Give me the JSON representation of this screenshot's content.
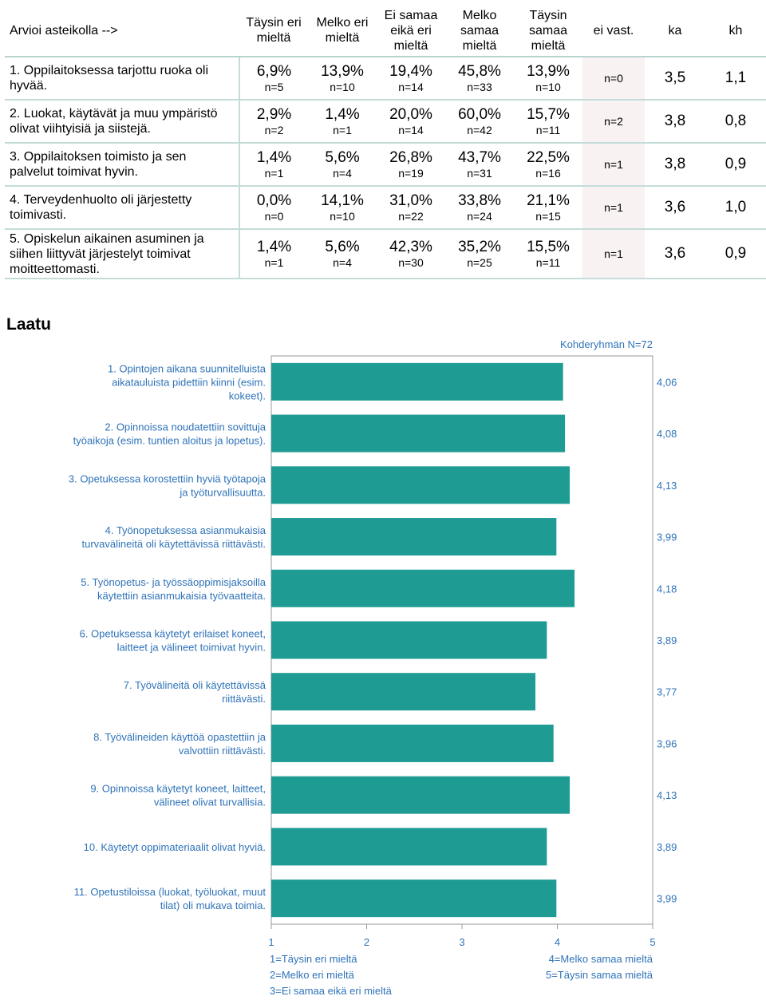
{
  "table": {
    "question_header": "Arvioi asteikolla -->",
    "scale_headers": [
      "Täysin eri mieltä",
      "Melko eri mieltä",
      "Ei samaa eikä eri mieltä",
      "Melko samaa mieltä",
      "Täysin samaa mieltä"
    ],
    "no_answer_header": "ei vast.",
    "mean_header": "ka",
    "sd_header": "kh",
    "rows": [
      {
        "question": "1. Oppilaitoksessa tarjottu ruoka oli hyvää.",
        "cells": [
          {
            "pct": "6,9%",
            "n": "n=5"
          },
          {
            "pct": "13,9%",
            "n": "n=10"
          },
          {
            "pct": "19,4%",
            "n": "n=14"
          },
          {
            "pct": "45,8%",
            "n": "n=33"
          },
          {
            "pct": "13,9%",
            "n": "n=10"
          }
        ],
        "no_answer": "n=0",
        "mean": "3,5",
        "sd": "1,1"
      },
      {
        "question": "2. Luokat, käytävät ja muu ympäristö olivat viihtyisiä ja siistejä.",
        "cells": [
          {
            "pct": "2,9%",
            "n": "n=2"
          },
          {
            "pct": "1,4%",
            "n": "n=1"
          },
          {
            "pct": "20,0%",
            "n": "n=14"
          },
          {
            "pct": "60,0%",
            "n": "n=42"
          },
          {
            "pct": "15,7%",
            "n": "n=11"
          }
        ],
        "no_answer": "n=2",
        "mean": "3,8",
        "sd": "0,8"
      },
      {
        "question": "3. Oppilaitoksen toimisto ja sen palvelut toimivat hyvin.",
        "cells": [
          {
            "pct": "1,4%",
            "n": "n=1"
          },
          {
            "pct": "5,6%",
            "n": "n=4"
          },
          {
            "pct": "26,8%",
            "n": "n=19"
          },
          {
            "pct": "43,7%",
            "n": "n=31"
          },
          {
            "pct": "22,5%",
            "n": "n=16"
          }
        ],
        "no_answer": "n=1",
        "mean": "3,8",
        "sd": "0,9"
      },
      {
        "question": "4. Terveydenhuolto oli järjestetty toimivasti.",
        "cells": [
          {
            "pct": "0,0%",
            "n": "n=0"
          },
          {
            "pct": "14,1%",
            "n": "n=10"
          },
          {
            "pct": "31,0%",
            "n": "n=22"
          },
          {
            "pct": "33,8%",
            "n": "n=24"
          },
          {
            "pct": "21,1%",
            "n": "n=15"
          }
        ],
        "no_answer": "n=1",
        "mean": "3,6",
        "sd": "1,0"
      },
      {
        "question": "5. Opiskelun aikainen asuminen ja siihen liittyvät järjestelyt toimivat moitteettomasti.",
        "cells": [
          {
            "pct": "1,4%",
            "n": "n=1"
          },
          {
            "pct": "5,6%",
            "n": "n=4"
          },
          {
            "pct": "42,3%",
            "n": "n=30"
          },
          {
            "pct": "35,2%",
            "n": "n=25"
          },
          {
            "pct": "15,5%",
            "n": "n=11"
          }
        ],
        "no_answer": "n=1",
        "mean": "3,6",
        "sd": "0,9"
      }
    ]
  },
  "section_title": "Laatu",
  "chart_data": {
    "type": "bar",
    "orientation": "horizontal",
    "note": "Kohderyhmän N=72",
    "categories": [
      "1. Opintojen aikana suunnitelluista aikatauluista pidettiin kiinni (esim. kokeet).",
      "2. Opinnoissa noudatettiin sovittuja työaikoja (esim. tuntien aloitus ja lopetus).",
      "3. Opetuksessa korostettiin hyviä työtapoja ja työturvallisuutta.",
      "4. Työnopetuksessa asianmukaisia turvavälineitä oli käytettävissä riittävästi.",
      "5. Työnopetus- ja työssäoppimisjaksoilla käytettiin asianmukaisia työvaatteita.",
      "6. Opetuksessa käytetyt erilaiset koneet, laitteet ja välineet toimivat hyvin.",
      "7. Työvälineitä oli käytettävissä riittävästi.",
      "8. Työvälineiden käyttöä opastettiin ja valvottiin riittävästi.",
      "9. Opinnoissa käytetyt koneet, laitteet, välineet olivat turvallisia.",
      "10. Käytetyt oppimateriaalit olivat hyviä.",
      "11. Opetustiloissa (luokat, työluokat, muut tilat) oli mukava toimia."
    ],
    "category_lines": [
      [
        "1. Opintojen aikana suunnitelluista",
        "aikatauluista pidettiin kiinni (esim.",
        "kokeet)."
      ],
      [
        "2. Opinnoissa noudatettiin sovittuja",
        "työaikoja (esim. tuntien aloitus ja lopetus)."
      ],
      [
        "3. Opetuksessa korostettiin hyviä työtapoja",
        "ja työturvallisuutta."
      ],
      [
        "4. Työnopetuksessa asianmukaisia",
        "turvavälineitä oli käytettävissä riittävästi."
      ],
      [
        "5. Työnopetus- ja työssäoppimisjaksoilla",
        "käytettiin asianmukaisia työvaatteita."
      ],
      [
        "6. Opetuksessa käytetyt erilaiset koneet,",
        "laitteet ja välineet toimivat hyvin."
      ],
      [
        "7. Työvälineitä oli käytettävissä",
        "riittävästi."
      ],
      [
        "8. Työvälineiden käyttöä opastettiin ja",
        "valvottiin riittävästi."
      ],
      [
        "9. Opinnoissa käytetyt koneet, laitteet,",
        "välineet olivat turvallisia."
      ],
      [
        "10. Käytetyt oppimateriaalit olivat hyviä."
      ],
      [
        "11. Opetustiloissa (luokat, työluokat, muut",
        "tilat) oli mukava toimia."
      ]
    ],
    "values": [
      4.06,
      4.08,
      4.13,
      3.99,
      4.18,
      3.89,
      3.77,
      3.96,
      4.13,
      3.89,
      3.99
    ],
    "value_labels": [
      "4,06",
      "4,08",
      "4,13",
      "3,99",
      "4,18",
      "3,89",
      "3,77",
      "3,96",
      "4,13",
      "3,89",
      "3,99"
    ],
    "xlim": [
      1,
      5
    ],
    "xticks": [
      "1",
      "2",
      "3",
      "4",
      "5"
    ],
    "legend_left": [
      "1=Täysin eri mieltä",
      "2=Melko eri mieltä",
      "3=Ei samaa eikä eri mieltä"
    ],
    "legend_right": [
      "4=Melko samaa mieltä",
      "5=Täysin samaa mieltä"
    ],
    "colors": {
      "bar": "#1e9b92",
      "plot_border": "#999999",
      "label_text": "#2f73b8",
      "plot_bg": "#ffffff"
    }
  }
}
